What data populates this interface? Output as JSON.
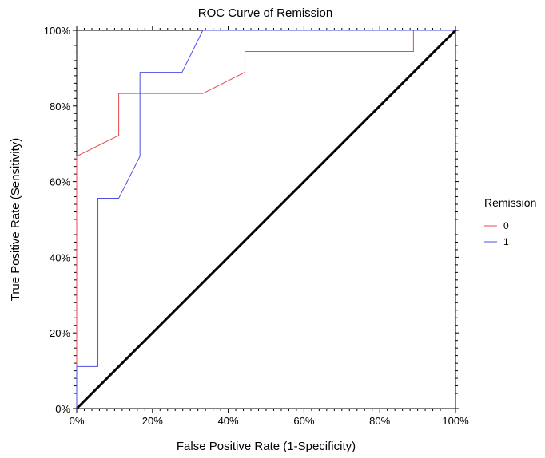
{
  "chart_data": {
    "type": "line",
    "title": "ROC Curve of Remission",
    "xlabel": "False Positive Rate (1-Specificity)",
    "ylabel": "True Positive Rate (Sensitivity)",
    "xlim": [
      0,
      1
    ],
    "ylim": [
      0,
      1
    ],
    "x_ticks": [
      0,
      0.2,
      0.4,
      0.6,
      0.8,
      1.0
    ],
    "y_ticks": [
      0,
      0.2,
      0.4,
      0.6,
      0.8,
      1.0
    ],
    "x_tick_labels": [
      "0%",
      "20%",
      "40%",
      "60%",
      "80%",
      "100%"
    ],
    "y_tick_labels": [
      "0%",
      "20%",
      "40%",
      "60%",
      "80%",
      "100%"
    ],
    "grid": false,
    "legend": {
      "title": "Remission",
      "placement": "right"
    },
    "series": [
      {
        "name": "0",
        "color": "#e8474c",
        "points": [
          [
            0,
            0
          ],
          [
            0,
            0.667
          ],
          [
            0.111,
            0.722
          ],
          [
            0.111,
            0.833
          ],
          [
            0.333,
            0.833
          ],
          [
            0.444,
            0.889
          ],
          [
            0.444,
            0.944
          ],
          [
            0.889,
            0.944
          ],
          [
            0.889,
            1.0
          ],
          [
            1.0,
            1.0
          ]
        ]
      },
      {
        "name": "1",
        "color": "#4f4fe0",
        "points": [
          [
            0,
            0
          ],
          [
            0,
            0.111
          ],
          [
            0.056,
            0.111
          ],
          [
            0.056,
            0.556
          ],
          [
            0.111,
            0.556
          ],
          [
            0.167,
            0.667
          ],
          [
            0.167,
            0.889
          ],
          [
            0.278,
            0.889
          ],
          [
            0.333,
            1.0
          ],
          [
            1.0,
            1.0
          ]
        ]
      }
    ],
    "reference_line": {
      "points": [
        [
          0,
          0
        ],
        [
          1,
          1
        ]
      ],
      "color": "#000000"
    }
  }
}
